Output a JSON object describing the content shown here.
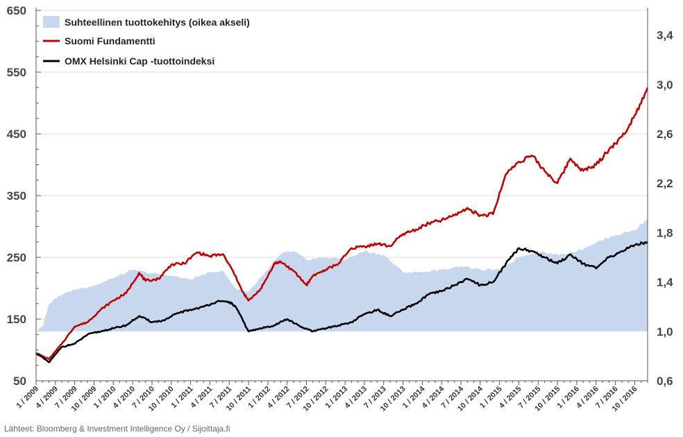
{
  "chart_data": {
    "type": "line",
    "title": "",
    "xlabel": "",
    "ylabel": "",
    "left_axis": {
      "ylim": [
        50,
        650
      ],
      "ticks": [
        50,
        150,
        250,
        350,
        450,
        550,
        650
      ]
    },
    "right_axis": {
      "ylim": [
        0.6,
        3.6
      ],
      "ticks": [
        "0,6",
        "1,0",
        "1,4",
        "1,8",
        "2,2",
        "2,6",
        "3,0",
        "3,4"
      ],
      "tick_values": [
        0.6,
        1.0,
        1.4,
        1.8,
        2.2,
        2.6,
        3.0,
        3.4
      ]
    },
    "x_range": [
      "2009-01",
      "2016-12"
    ],
    "x_tick_labels": [
      "1 / 2009",
      "4 / 2009",
      "7 / 2009",
      "10 / 2009",
      "1 / 2010",
      "4 / 2010",
      "7 / 2010",
      "10 / 2010",
      "1 / 2011",
      "4 / 2011",
      "7 / 2011",
      "10 / 2011",
      "1 / 2012",
      "4 / 2012",
      "7 / 2012",
      "10 / 2012",
      "1 / 2013",
      "4 / 2013",
      "7 / 2013",
      "10 / 2013",
      "1 / 2014",
      "4 / 2014",
      "7 / 2014",
      "10 / 2014",
      "1 / 2015",
      "4 / 2015",
      "7 / 2015",
      "10 / 2015",
      "1 / 2016",
      "4 / 2016",
      "7 / 2016",
      "10 / 2016"
    ],
    "grid": true,
    "legend_position": "top-left",
    "series": [
      {
        "name": "Suhteellinen tuottokehitys (oikea akseli)",
        "type": "area",
        "axis": "right",
        "color": "#c6d7ee",
        "x": [
          "2009-01",
          "2009-02",
          "2009-03",
          "2009-04",
          "2009-06",
          "2009-08",
          "2009-10",
          "2010-01",
          "2010-04",
          "2010-07",
          "2010-10",
          "2011-01",
          "2011-04",
          "2011-06",
          "2011-08",
          "2011-10",
          "2012-01",
          "2012-03",
          "2012-05",
          "2012-07",
          "2012-10",
          "2013-01",
          "2013-04",
          "2013-07",
          "2013-10",
          "2014-01",
          "2014-04",
          "2014-07",
          "2014-10",
          "2015-01",
          "2015-04",
          "2015-07",
          "2015-10",
          "2016-01",
          "2016-04",
          "2016-07",
          "2016-10",
          "2016-12"
        ],
        "values": [
          1.0,
          1.04,
          1.22,
          1.27,
          1.32,
          1.35,
          1.37,
          1.43,
          1.5,
          1.47,
          1.45,
          1.42,
          1.48,
          1.49,
          1.35,
          1.32,
          1.5,
          1.63,
          1.65,
          1.58,
          1.6,
          1.58,
          1.65,
          1.62,
          1.48,
          1.48,
          1.5,
          1.53,
          1.5,
          1.5,
          1.6,
          1.65,
          1.62,
          1.65,
          1.72,
          1.78,
          1.82,
          1.91
        ]
      },
      {
        "name": "Suomi Fundamentti",
        "type": "line",
        "axis": "left",
        "color": "#c00000",
        "x": [
          "2009-01",
          "2009-03",
          "2009-05",
          "2009-07",
          "2009-09",
          "2009-11",
          "2010-01",
          "2010-03",
          "2010-05",
          "2010-06",
          "2010-08",
          "2010-10",
          "2010-12",
          "2011-02",
          "2011-04",
          "2011-06",
          "2011-08",
          "2011-09",
          "2011-10",
          "2011-12",
          "2012-02",
          "2012-03",
          "2012-05",
          "2012-07",
          "2012-08",
          "2012-10",
          "2012-12",
          "2013-02",
          "2013-04",
          "2013-06",
          "2013-08",
          "2013-10",
          "2013-12",
          "2014-02",
          "2014-04",
          "2014-06",
          "2014-08",
          "2014-10",
          "2014-12",
          "2015-02",
          "2015-04",
          "2015-06",
          "2015-08",
          "2015-10",
          "2015-12",
          "2016-02",
          "2016-04",
          "2016-06",
          "2016-08",
          "2016-10",
          "2016-12"
        ],
        "values": [
          95,
          85,
          110,
          138,
          145,
          165,
          180,
          192,
          225,
          212,
          215,
          238,
          240,
          258,
          252,
          255,
          220,
          195,
          180,
          200,
          240,
          243,
          228,
          205,
          220,
          230,
          240,
          265,
          268,
          272,
          268,
          288,
          295,
          305,
          310,
          318,
          330,
          318,
          320,
          385,
          405,
          415,
          390,
          370,
          410,
          390,
          400,
          425,
          445,
          480,
          525
        ]
      },
      {
        "name": "OMX Helsinki Cap -tuottoindeksi",
        "type": "line",
        "axis": "left",
        "color": "#000000",
        "x": [
          "2009-01",
          "2009-03",
          "2009-05",
          "2009-07",
          "2009-09",
          "2009-11",
          "2010-01",
          "2010-03",
          "2010-05",
          "2010-07",
          "2010-09",
          "2010-11",
          "2011-01",
          "2011-03",
          "2011-05",
          "2011-07",
          "2011-08",
          "2011-10",
          "2011-12",
          "2012-02",
          "2012-04",
          "2012-06",
          "2012-08",
          "2012-10",
          "2012-12",
          "2013-02",
          "2013-04",
          "2013-06",
          "2013-08",
          "2013-10",
          "2013-12",
          "2014-02",
          "2014-04",
          "2014-06",
          "2014-08",
          "2014-10",
          "2014-12",
          "2015-02",
          "2015-04",
          "2015-06",
          "2015-08",
          "2015-10",
          "2015-12",
          "2016-02",
          "2016-04",
          "2016-06",
          "2016-08",
          "2016-10",
          "2016-12"
        ],
        "values": [
          95,
          80,
          105,
          110,
          125,
          130,
          135,
          140,
          155,
          145,
          148,
          160,
          165,
          170,
          178,
          178,
          170,
          130,
          135,
          140,
          150,
          138,
          130,
          135,
          140,
          145,
          158,
          165,
          155,
          165,
          175,
          190,
          195,
          205,
          215,
          205,
          210,
          240,
          265,
          260,
          250,
          240,
          255,
          240,
          232,
          250,
          260,
          270,
          275
        ]
      }
    ],
    "source": "Lähteet: Bloomberg & Investment Intelligence Oy / Sijoittaja.fi"
  }
}
